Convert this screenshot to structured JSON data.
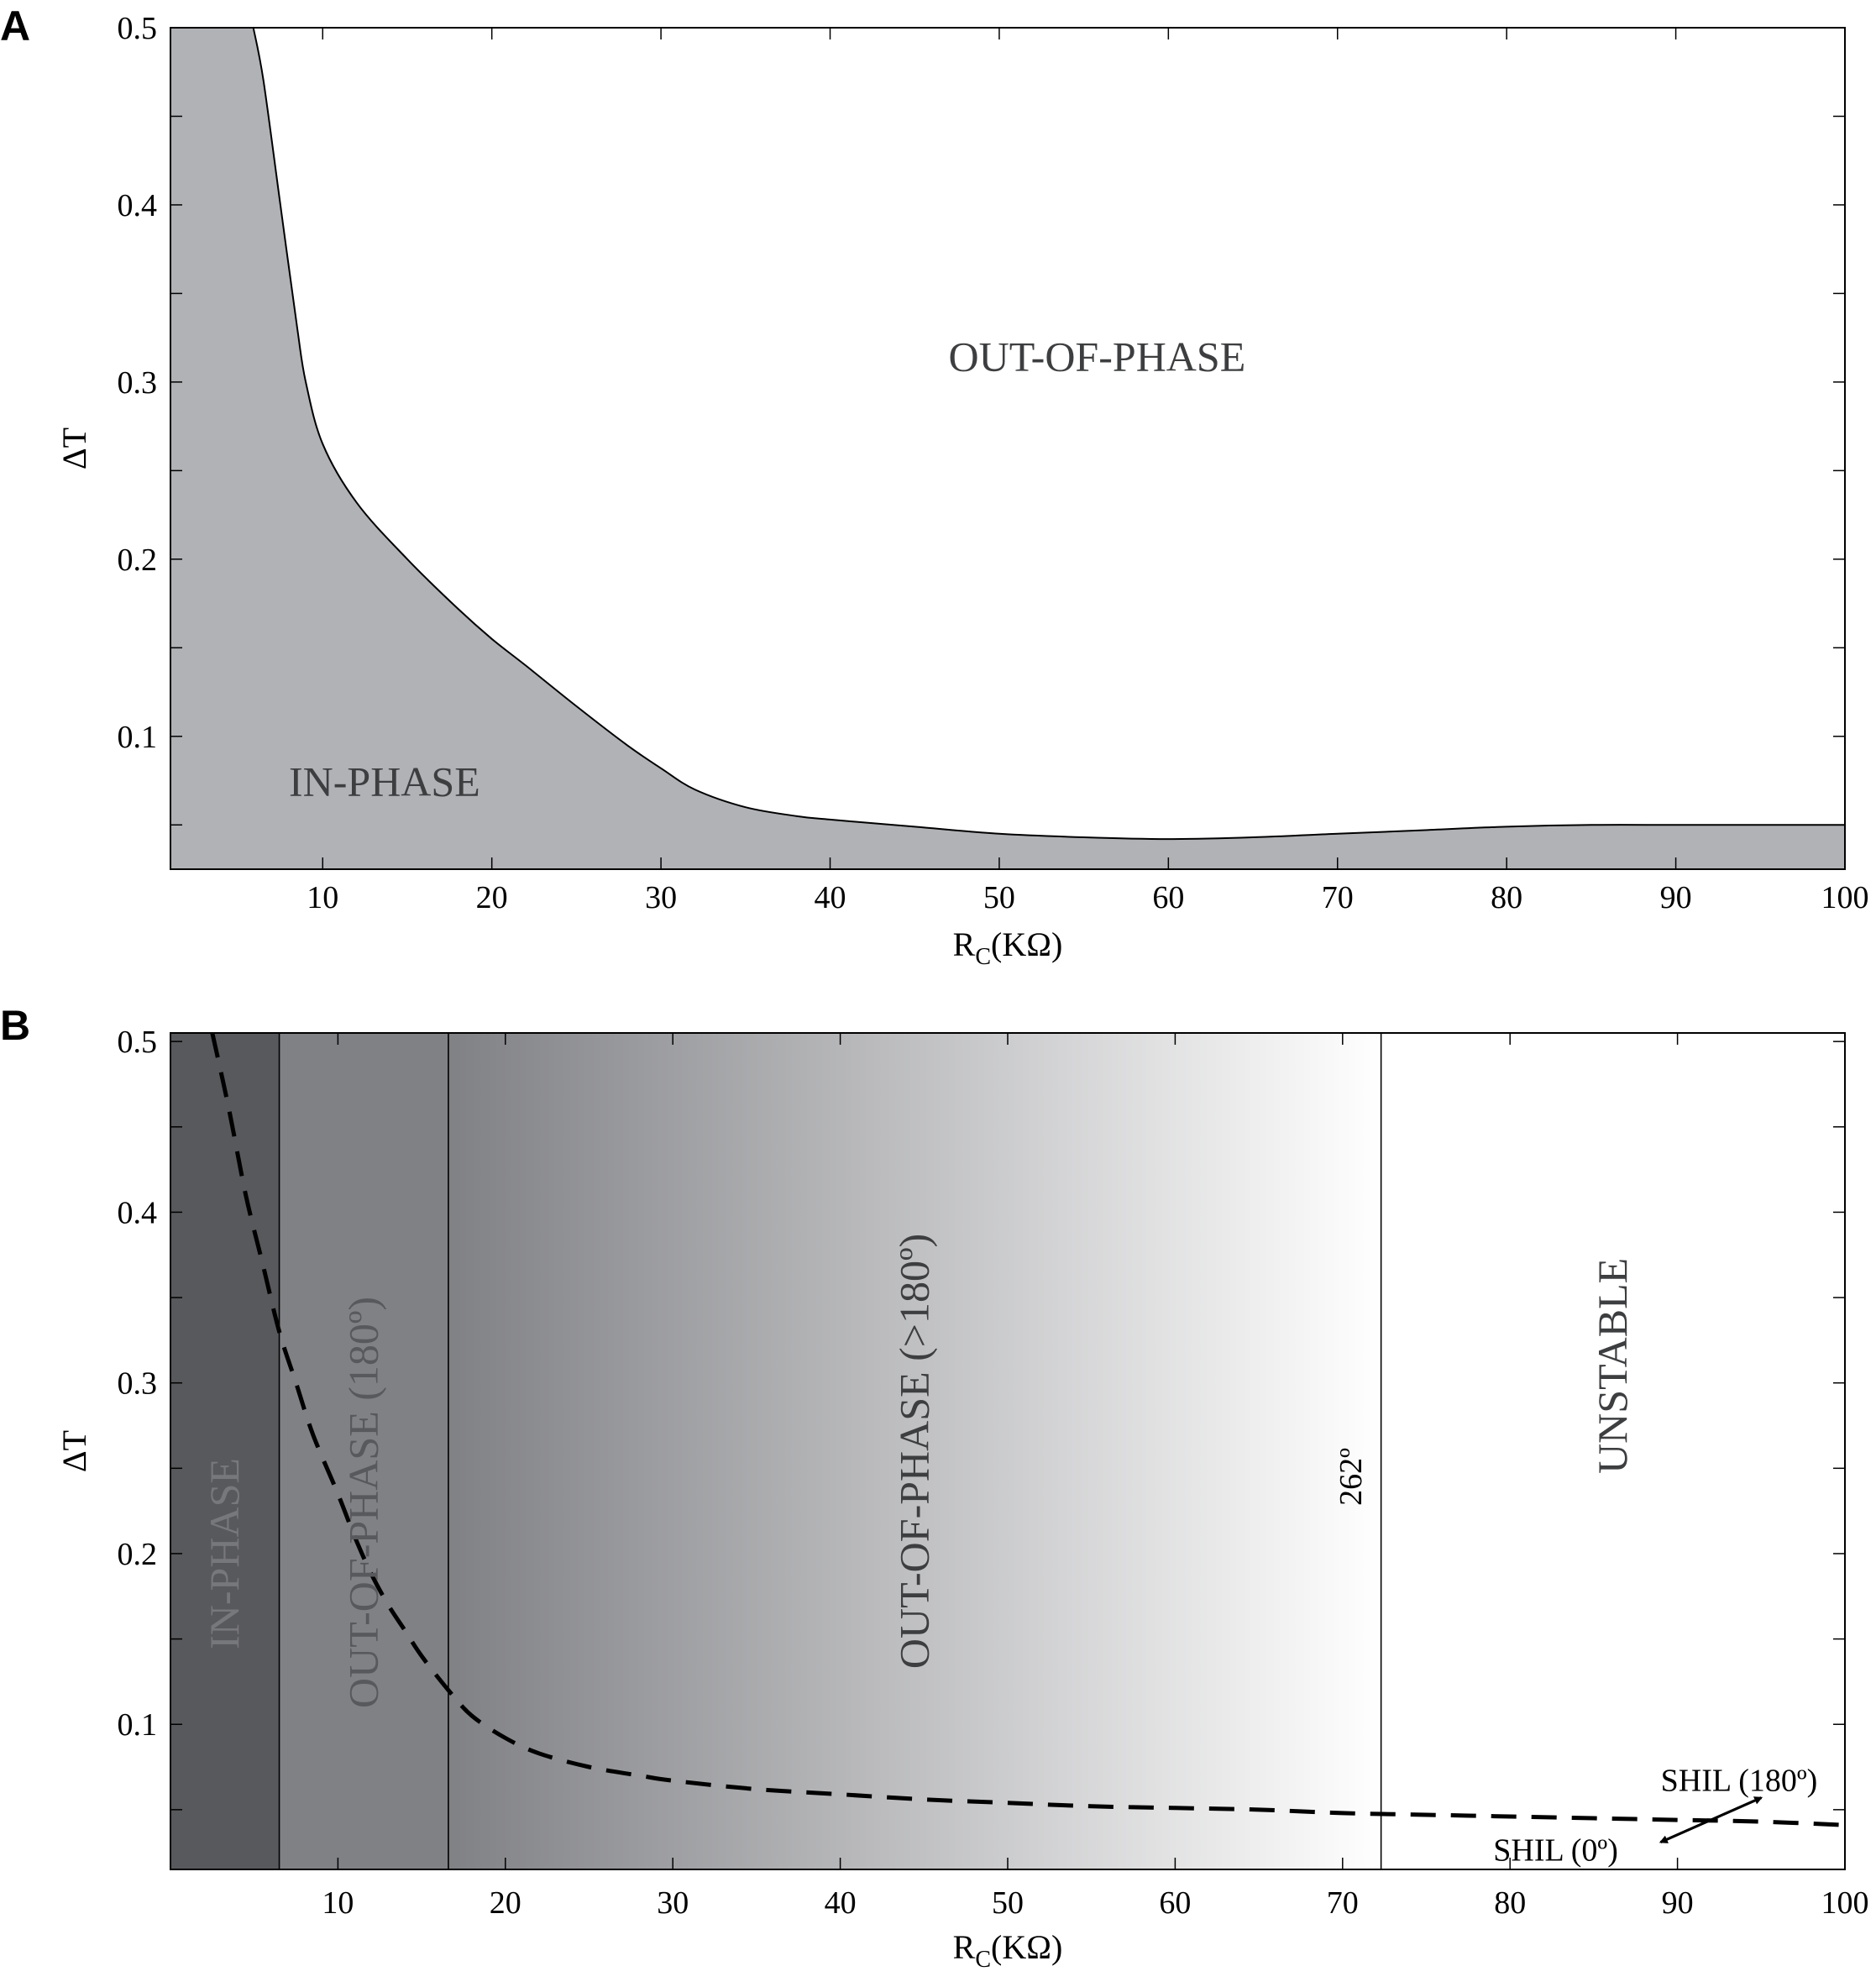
{
  "chart_data": [
    {
      "panel": "A",
      "type": "area",
      "xlabel": "R",
      "xlabel_sub": "C",
      "xlabel_unit": "(KΩ)",
      "ylabel": "ΔT",
      "xlim": [
        1,
        100
      ],
      "ylim": [
        0.025,
        0.5
      ],
      "x_ticks": [
        10,
        20,
        30,
        40,
        50,
        60,
        70,
        80,
        90,
        100
      ],
      "y_ticks": [
        0.1,
        0.2,
        0.3,
        0.4,
        0.5
      ],
      "y_tick_labels": [
        "0.1",
        "0.2",
        "0.3",
        "0.4",
        "0.5"
      ],
      "boundary": {
        "x": [
          5.9,
          6.5,
          7.5,
          8.5,
          9.0,
          10,
          12,
          15,
          18,
          20,
          22,
          25,
          28,
          30,
          32,
          35,
          38,
          40,
          45,
          50,
          55,
          60,
          65,
          70,
          75,
          80,
          85,
          90,
          95,
          100
        ],
        "y": [
          0.5,
          0.47,
          0.4,
          0.33,
          0.3,
          0.265,
          0.232,
          0.2,
          0.172,
          0.155,
          0.14,
          0.117,
          0.095,
          0.082,
          0.07,
          0.06,
          0.055,
          0.053,
          0.049,
          0.045,
          0.043,
          0.042,
          0.043,
          0.045,
          0.047,
          0.049,
          0.05,
          0.05,
          0.05,
          0.05
        ]
      },
      "regions": [
        {
          "label": "IN-PHASE",
          "x": 8,
          "y": 0.075,
          "fill": "#b1b2b6"
        },
        {
          "label": "OUT-OF-PHASE",
          "x": 47,
          "y": 0.315,
          "fill": "#ffffff"
        }
      ],
      "colors": {
        "in_phase_fill": "#b1b2b6",
        "out_of_phase_fill": "#ffffff"
      }
    },
    {
      "panel": "B",
      "type": "line",
      "xlabel": "R",
      "xlabel_sub": "C",
      "xlabel_unit": "(KΩ)",
      "ylabel": "ΔT",
      "xlim": [
        0,
        100
      ],
      "ylim": [
        0.015,
        0.505
      ],
      "x_ticks": [
        10,
        20,
        30,
        40,
        50,
        60,
        70,
        80,
        90,
        100
      ],
      "y_ticks": [
        0.1,
        0.2,
        0.3,
        0.4,
        0.5
      ],
      "y_tick_labels": [
        "0.1",
        "0.2",
        "0.3",
        "0.4",
        "0.5"
      ],
      "bands": [
        {
          "label": "IN-PHASE",
          "x0": 0,
          "x1": 6.5,
          "fill": "#58595c",
          "text_color": "#77787b"
        },
        {
          "label": "OUT-OF-PHASE (180º)",
          "x0": 6.5,
          "x1": 16.6,
          "fill": "#808185",
          "text_color": "#58595c"
        },
        {
          "label": "OUT-OF-PHASE (>180º)",
          "x0": 16.6,
          "x1": 72.3,
          "fill_start": "#808185",
          "fill_end": "#ffffff",
          "text_color": "#3d3e40"
        },
        {
          "label": "UNSTABLE",
          "x0": 72.3,
          "x1": 100,
          "fill": "#ffffff",
          "text_color": "#3d3e40"
        }
      ],
      "band_label_y": [
        0.2,
        0.23,
        0.26,
        0.31
      ],
      "boundary_label": {
        "text": "262º",
        "x": 70.5,
        "y": 0.245
      },
      "series": [
        {
          "name": "SHIL",
          "style": "dashed",
          "x": [
            2.5,
            3.5,
            4.5,
            5.5,
            6.5,
            7.5,
            8.5,
            10,
            11,
            12,
            13,
            14,
            15,
            16.6,
            18,
            20,
            22,
            25,
            28,
            30,
            35,
            40,
            45,
            50,
            55,
            60,
            65,
            70,
            75,
            80,
            85,
            90,
            95,
            100
          ],
          "y": [
            0.505,
            0.46,
            0.41,
            0.37,
            0.33,
            0.3,
            0.27,
            0.235,
            0.21,
            0.188,
            0.17,
            0.155,
            0.14,
            0.12,
            0.105,
            0.092,
            0.083,
            0.075,
            0.07,
            0.067,
            0.062,
            0.059,
            0.056,
            0.054,
            0.052,
            0.051,
            0.05,
            0.048,
            0.047,
            0.046,
            0.045,
            0.044,
            0.043,
            0.041
          ]
        }
      ],
      "annotations": [
        {
          "text": "SHIL (180º)",
          "x": 89,
          "y": 0.067,
          "arrow_to": [
            95,
            0.057
          ]
        },
        {
          "text": "SHIL (0º)",
          "x": 79,
          "y": 0.026,
          "arrow_to": [
            89,
            0.031
          ]
        }
      ]
    }
  ]
}
